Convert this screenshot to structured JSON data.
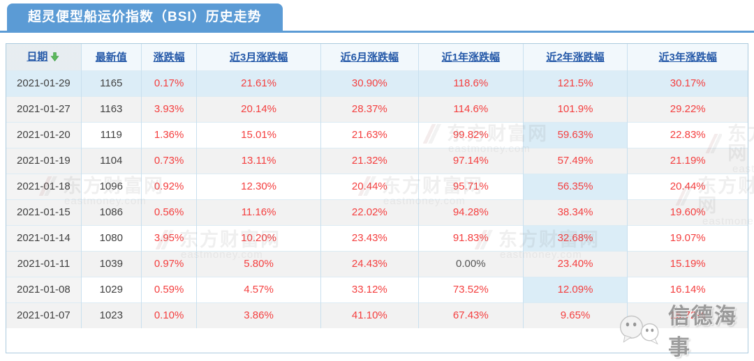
{
  "title": "超灵便型船运价指数（BSI）历史走势",
  "table": {
    "columns": [
      {
        "label": "日期",
        "sorted": "desc"
      },
      {
        "label": "最新值"
      },
      {
        "label": "涨跌幅"
      },
      {
        "label": "近3月涨跌幅"
      },
      {
        "label": "近6月涨跌幅"
      },
      {
        "label": "近1年涨跌幅"
      },
      {
        "label": "近2年涨跌幅"
      },
      {
        "label": "近3年涨跌幅"
      }
    ],
    "rows": [
      [
        "2021-01-29",
        "1165",
        "0.17%",
        "21.61%",
        "30.90%",
        "118.6%",
        "121.5%",
        "30.17%"
      ],
      [
        "2021-01-27",
        "1163",
        "3.93%",
        "20.14%",
        "28.37%",
        "114.6%",
        "101.9%",
        "29.22%"
      ],
      [
        "2021-01-20",
        "1119",
        "1.36%",
        "15.01%",
        "21.63%",
        "99.82%",
        "59.63%",
        "22.83%"
      ],
      [
        "2021-01-19",
        "1104",
        "0.73%",
        "13.11%",
        "21.32%",
        "97.14%",
        "57.49%",
        "21.19%"
      ],
      [
        "2021-01-18",
        "1096",
        "0.92%",
        "12.30%",
        "20.44%",
        "95.71%",
        "56.35%",
        "20.44%"
      ],
      [
        "2021-01-15",
        "1086",
        "0.56%",
        "11.16%",
        "22.02%",
        "94.28%",
        "38.34%",
        "19.60%"
      ],
      [
        "2021-01-14",
        "1080",
        "3.95%",
        "10.20%",
        "23.43%",
        "91.83%",
        "32.68%",
        "19.07%"
      ],
      [
        "2021-01-11",
        "1039",
        "0.97%",
        "5.80%",
        "24.43%",
        "0.00%",
        "23.40%",
        "15.19%"
      ],
      [
        "2021-01-08",
        "1029",
        "0.59%",
        "4.57%",
        "33.12%",
        "73.52%",
        "12.09%",
        "16.14%"
      ],
      [
        "2021-01-07",
        "1023",
        "0.10%",
        "3.86%",
        "41.10%",
        "67.43%",
        "9.65%",
        "15.72%"
      ]
    ],
    "highlighted_column_label": "近2年涨跌幅",
    "neutral_value": "0.00%"
  },
  "watermarks": {
    "eastmoney_line1": "东方财富网",
    "eastmoney_line2": "eastmoney.com",
    "brand": "信德海事"
  },
  "colors": {
    "accent_blue": "#5B9BD5",
    "up_red": "#F43E3E",
    "link_blue": "#2458A8",
    "highlight_blue": "#DCEDF7",
    "alt_row_gray": "#F2F2F2",
    "sort_arrow_green": "#5CB85C"
  }
}
